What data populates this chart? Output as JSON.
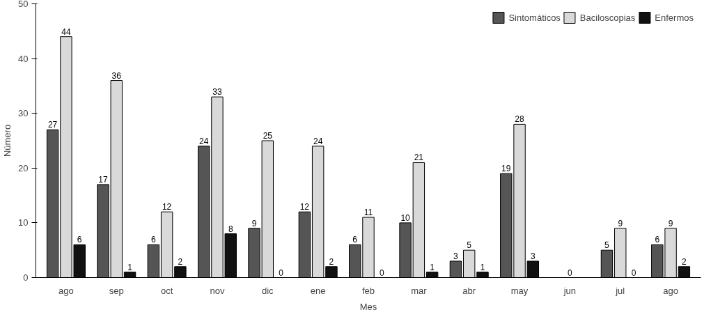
{
  "chart_data": {
    "type": "bar",
    "xlabel": "Mes",
    "ylabel": "Número",
    "categories": [
      "ago",
      "sep",
      "oct",
      "nov",
      "dic",
      "ene",
      "feb",
      "mar",
      "abr",
      "may",
      "jun",
      "jul",
      "ago"
    ],
    "series": [
      {
        "name": "Sintomáticos",
        "color": "#555555",
        "values": [
          27,
          17,
          6,
          24,
          9,
          12,
          6,
          10,
          3,
          19,
          0,
          5,
          6
        ],
        "value_labels": [
          "27",
          "17",
          "6",
          "24",
          "9",
          "12",
          "6",
          "10",
          "3",
          "19",
          null,
          "5",
          "6"
        ]
      },
      {
        "name": "Baciloscopias",
        "color": "#d9d9d9",
        "values": [
          44,
          36,
          12,
          33,
          25,
          24,
          11,
          21,
          5,
          28,
          0,
          9,
          9
        ],
        "value_labels": [
          "44",
          "36",
          "12",
          "33",
          "25",
          "24",
          "11",
          "21",
          "5",
          "28",
          "0",
          "9",
          "9"
        ]
      },
      {
        "name": "Enfermos",
        "color": "#111111",
        "values": [
          6,
          1,
          2,
          8,
          0,
          2,
          0,
          1,
          1,
          3,
          0,
          0,
          2
        ],
        "value_labels": [
          "6",
          "1",
          "2",
          "8",
          "0",
          "2",
          "0",
          "1",
          "1",
          "3",
          null,
          "0",
          "2"
        ]
      }
    ],
    "ylim": [
      0,
      50
    ],
    "yticks": [
      0,
      10,
      20,
      30,
      40,
      50
    ],
    "grid": false,
    "legend": "top right"
  }
}
